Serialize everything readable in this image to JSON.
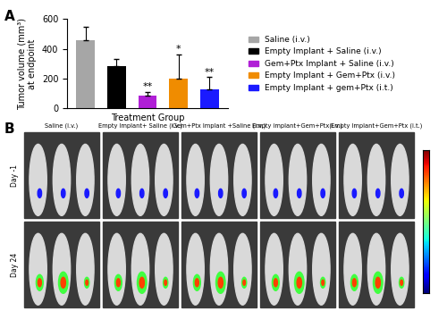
{
  "chart_data": {
    "type": "bar",
    "y_label": "Tumor volume (mm³)\nat endpoint",
    "x_label": "Treatment Group",
    "categories": [
      "Saline (i.v.)",
      "Empty Implant + Saline (i.v.)",
      "Gem+Ptx Implant + Saline (i.v.)",
      "Empty Implant + Gem+Ptx (i.v.)",
      "Empty Implant + gem+Ptx (i.t.)"
    ],
    "values": [
      460,
      285,
      88,
      200,
      130
    ],
    "errors": [
      90,
      45,
      25,
      165,
      80
    ],
    "significance": [
      null,
      null,
      "**",
      "*",
      "**"
    ],
    "colors": [
      "#a6a6a6",
      "#000000",
      "#b01fd6",
      "#f08c00",
      "#1a1aff"
    ],
    "ylim": [
      0,
      600
    ],
    "yticks": [
      0,
      200,
      400,
      600
    ],
    "tick_labels": "y",
    "legend": "right"
  },
  "panel_labels": [
    "A",
    "B"
  ],
  "image_panel": {
    "columns": [
      "Saline (i.v.)",
      "Empty Implant+ Saline (i.v.)",
      "Gem+Ptx Implant +Saline (i.v.)",
      "Empty implant+Gem+Ptx(i.v.)",
      "Empty Implant+Gem+Ptx (i.t.)"
    ],
    "rows": [
      "Day -1",
      "Day 24"
    ]
  }
}
